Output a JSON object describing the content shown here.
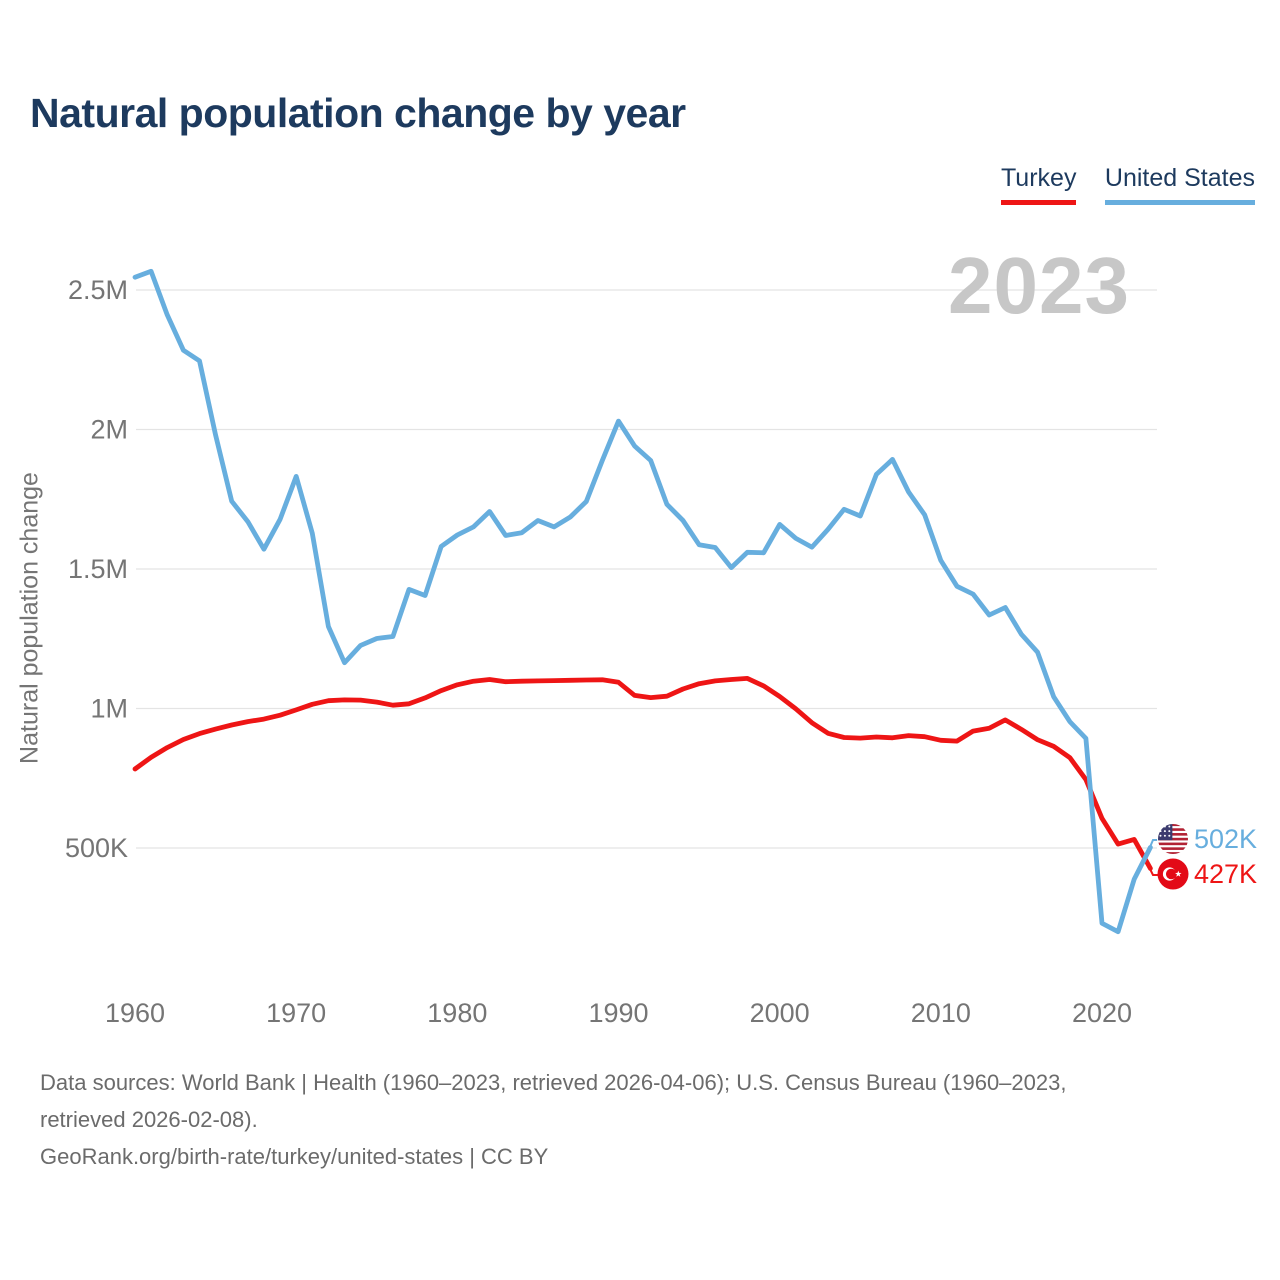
{
  "title": "Natural population change by year",
  "watermark": "2023",
  "legend": [
    {
      "label": "Turkey",
      "color": "#ee1515"
    },
    {
      "label": "United States",
      "color": "#67aede"
    }
  ],
  "y_axis": {
    "title": "Natural population change",
    "ticks": [
      {
        "label": "2.5M",
        "value": 2500
      },
      {
        "label": "2M",
        "value": 2000
      },
      {
        "label": "1.5M",
        "value": 1500
      },
      {
        "label": "1M",
        "value": 1000
      },
      {
        "label": "500K",
        "value": 500
      }
    ]
  },
  "x_axis": {
    "ticks": [
      1960,
      1970,
      1980,
      1990,
      2000,
      2010,
      2020
    ]
  },
  "end_labels": {
    "united_states": {
      "value": "502K",
      "color": "#67aede",
      "flag_icon": "us-flag-icon"
    },
    "turkey": {
      "value": "427K",
      "color": "#ee1515",
      "flag_icon": "turkey-flag-icon"
    }
  },
  "footer": {
    "line1": "Data sources: World Bank | Health (1960–2023, retrieved 2026-04-06); U.S. Census Bureau (1960–2023,",
    "line2": "retrieved 2026-02-08).",
    "line3": "GeoRank.org/birth-rate/turkey/united-states | CC BY"
  },
  "colors": {
    "title": "#1d3a5e",
    "legend_text": "#1d3a5e",
    "axis_text": "#757575",
    "gridline": "#e4e4e4",
    "watermark": "#c7c7c7",
    "footer_text": "#6b6b6b",
    "turkey_line": "#ee1515",
    "us_line": "#67aede",
    "turkey_flag_red": "#e30a17",
    "us_flag_red": "#b22234",
    "us_flag_blue": "#3c3b6e"
  },
  "chart_data": {
    "type": "line",
    "title": "Natural population change by year",
    "xlabel": "",
    "ylabel": "Natural population change",
    "unit": "persons per year (thousands)",
    "x_range": [
      1960,
      2023
    ],
    "ylim_thousands": [
      200,
      2600
    ],
    "grid": "horizontal",
    "legend_position": "top-right",
    "watermark": "2023",
    "x": [
      1960,
      1961,
      1962,
      1963,
      1964,
      1965,
      1966,
      1967,
      1968,
      1969,
      1970,
      1971,
      1972,
      1973,
      1974,
      1975,
      1976,
      1977,
      1978,
      1979,
      1980,
      1981,
      1982,
      1983,
      1984,
      1985,
      1986,
      1987,
      1988,
      1989,
      1990,
      1991,
      1992,
      1993,
      1994,
      1995,
      1996,
      1997,
      1998,
      1999,
      2000,
      2001,
      2002,
      2003,
      2004,
      2005,
      2006,
      2007,
      2008,
      2009,
      2010,
      2011,
      2012,
      2013,
      2014,
      2015,
      2016,
      2017,
      2018,
      2019,
      2020,
      2021,
      2022,
      2023
    ],
    "series": [
      {
        "name": "Turkey",
        "color": "#ee1515",
        "end_label": "427K",
        "values_thousands": [
          783,
          825,
          860,
          889,
          910,
          926,
          941,
          953,
          962,
          976,
          995,
          1015,
          1028,
          1031,
          1030,
          1023,
          1012,
          1017,
          1038,
          1064,
          1085,
          1098,
          1104,
          1096,
          1098,
          1099,
          1100,
          1101,
          1102,
          1103,
          1094,
          1047,
          1039,
          1044,
          1070,
          1089,
          1099,
          1104,
          1108,
          1081,
          1043,
          999,
          949,
          911,
          896,
          894,
          898,
          895,
          903,
          899,
          886,
          883,
          919,
          929,
          959,
          925,
          888,
          864,
          824,
          745,
          606,
          514,
          531,
          427
        ]
      },
      {
        "name": "United States",
        "color": "#67aede",
        "end_label": "502K",
        "values_thousands": [
          2546,
          2567,
          2411,
          2284,
          2246,
          1980,
          1743,
          1670,
          1571,
          1678,
          1832,
          1628,
          1294,
          1164,
          1226,
          1251,
          1258,
          1427,
          1405,
          1581,
          1622,
          1651,
          1706,
          1620,
          1630,
          1674,
          1651,
          1686,
          1742,
          1890,
          2030,
          1941,
          1889,
          1732,
          1674,
          1587,
          1577,
          1505,
          1560,
          1558,
          1660,
          1610,
          1578,
          1642,
          1714,
          1690,
          1839,
          1893,
          1776,
          1694,
          1531,
          1438,
          1410,
          1335,
          1362,
          1266,
          1202,
          1042,
          953,
          893,
          230,
          200,
          388,
          502
        ]
      }
    ]
  }
}
